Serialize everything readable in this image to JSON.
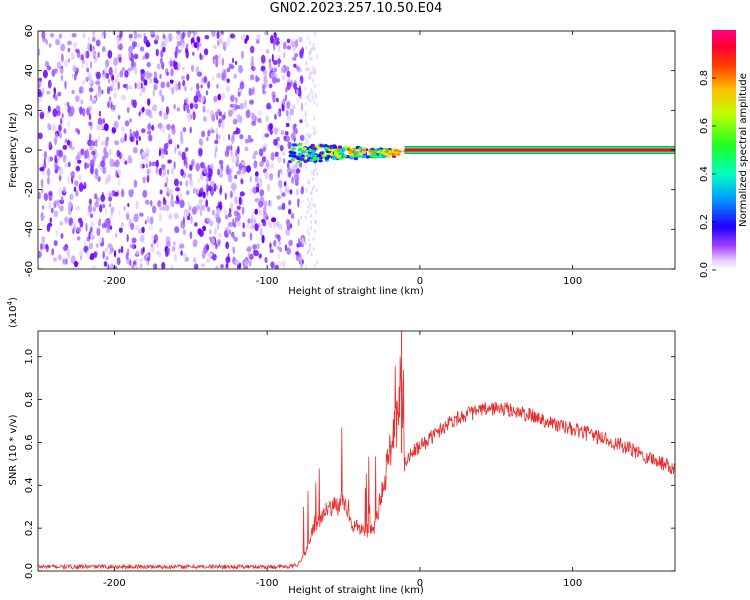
{
  "title": "GN02.2023.257.10.50.E04",
  "chart_data": [
    {
      "type": "heatmap",
      "xlabel": "Height of straight line (km)",
      "ylabel": "Frequency (Hz)",
      "xlim": [
        -250,
        167
      ],
      "ylim": [
        -60,
        60
      ],
      "x_ticks": [
        -200,
        -100,
        0,
        100
      ],
      "y_ticks": [
        60,
        40,
        20,
        0,
        -20,
        -40,
        -60
      ],
      "noise_region_x": [
        -250,
        -75
      ],
      "signal_line_y": 0,
      "signal_line_x": [
        -85,
        167
      ],
      "colorbar": {
        "label": "Normalized spectral amplitude",
        "range": [
          0.0,
          1.0
        ],
        "ticks": [
          "0.0",
          "0.2",
          "0.4",
          "0.6",
          "0.8"
        ],
        "colors": [
          "#ffffff",
          "#d9b3ff",
          "#8000ff",
          "#0000ff",
          "#00c0ff",
          "#00ff80",
          "#40ff00",
          "#ffff00",
          "#ff8000",
          "#ff0000",
          "#ff0080"
        ]
      }
    },
    {
      "type": "line",
      "xlabel": "Height of straight line (km)",
      "ylabel": "SNR (10 * v/v)",
      "y_multiplier": "(x10",
      "y_multiplier_exp": "4",
      "y_multiplier_close": ")",
      "xlim": [
        -250,
        167
      ],
      "ylim": [
        0,
        1.12
      ],
      "x_ticks": [
        -200,
        -100,
        0,
        100
      ],
      "y_ticks": [
        "0.0",
        "0.2",
        "0.4",
        "0.6",
        "0.8",
        "1.0"
      ],
      "series": [
        {
          "color": "#e83030",
          "x": [
            -250,
            -200,
            -150,
            -100,
            -85,
            -80,
            -75,
            -70,
            -65,
            -60,
            -55,
            -50,
            -45,
            -40,
            -35,
            -30,
            -25,
            -20,
            -15,
            -12,
            -10,
            -5,
            0,
            10,
            20,
            30,
            40,
            50,
            60,
            70,
            80,
            90,
            100,
            110,
            120,
            130,
            140,
            150,
            160,
            167
          ],
          "values": [
            0.02,
            0.02,
            0.02,
            0.02,
            0.02,
            0.03,
            0.08,
            0.2,
            0.25,
            0.28,
            0.3,
            0.32,
            0.22,
            0.2,
            0.18,
            0.2,
            0.35,
            0.55,
            0.7,
            0.95,
            0.5,
            0.55,
            0.58,
            0.64,
            0.7,
            0.73,
            0.75,
            0.76,
            0.75,
            0.73,
            0.71,
            0.68,
            0.66,
            0.64,
            0.62,
            0.59,
            0.56,
            0.53,
            0.5,
            0.48
          ]
        }
      ]
    }
  ]
}
